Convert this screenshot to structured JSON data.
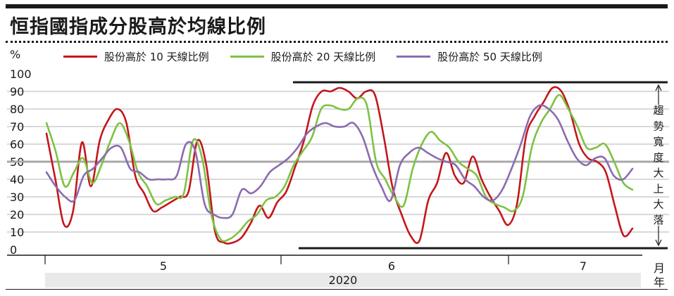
{
  "chart_data": {
    "type": "line",
    "title": "恒指國指成分股高於均線比例",
    "ylabel": "%",
    "ylim": [
      0,
      100
    ],
    "yticks": [
      "100",
      "90",
      "80",
      "70",
      "60",
      "50",
      "40",
      "30",
      "20",
      "10",
      "0"
    ],
    "months": [
      "5",
      "6",
      "7"
    ],
    "month_unit": "月",
    "year": "2020",
    "year_unit": "年",
    "grid": true,
    "legend_position": "top",
    "reference_line": 50,
    "annotation": {
      "text": "趨勢寬度大上大落",
      "upper": 90,
      "lower": 0
    },
    "colors": {
      "s10": "#c4161c",
      "s20": "#7dc242",
      "s50": "#8b6bb1",
      "grid": "#9a9a9a",
      "ref": "#a8a8a8"
    },
    "series": [
      {
        "name": "股份高於 10 天線比例",
        "color": "#c4161c",
        "values": [
          66,
          40,
          14,
          22,
          61,
          36,
          62,
          74,
          80,
          72,
          42,
          32,
          22,
          24,
          27,
          30,
          33,
          62,
          48,
          10,
          4,
          4,
          7,
          15,
          25,
          18,
          27,
          33,
          47,
          62,
          82,
          90,
          90,
          92,
          90,
          86,
          90,
          88,
          64,
          35,
          20,
          8,
          5,
          28,
          38,
          55,
          42,
          38,
          53,
          40,
          30,
          22,
          14,
          26,
          64,
          76,
          84,
          92,
          90,
          78,
          60,
          52,
          50,
          44,
          25,
          8,
          12
        ]
      },
      {
        "name": "股份高於 20 天線比例",
        "color": "#7dc242",
        "values": [
          72,
          56,
          36,
          44,
          52,
          38,
          48,
          62,
          72,
          62,
          44,
          36,
          26,
          28,
          30,
          32,
          62,
          52,
          20,
          6,
          6,
          10,
          16,
          20,
          28,
          30,
          36,
          48,
          56,
          64,
          80,
          82,
          80,
          80,
          86,
          82,
          50,
          40,
          30,
          25,
          46,
          60,
          67,
          62,
          58,
          50,
          46,
          42,
          30,
          26,
          24,
          22,
          30,
          58,
          72,
          80,
          88,
          80,
          70,
          58,
          58,
          60,
          50,
          38,
          34
        ]
      },
      {
        "name": "股份高於 50 天線比例",
        "color": "#8b6bb1",
        "values": [
          44,
          36,
          30,
          28,
          42,
          46,
          52,
          58,
          58,
          46,
          44,
          40,
          40,
          40,
          42,
          60,
          56,
          26,
          20,
          18,
          20,
          34,
          32,
          36,
          44,
          48,
          52,
          58,
          66,
          70,
          72,
          70,
          70,
          72,
          64,
          48,
          36,
          28,
          48,
          55,
          58,
          55,
          52,
          50,
          48,
          40,
          36,
          30,
          28,
          34,
          46,
          60,
          76,
          82,
          80,
          74,
          62,
          52,
          48,
          52,
          52,
          42,
          40,
          46
        ]
      }
    ]
  }
}
